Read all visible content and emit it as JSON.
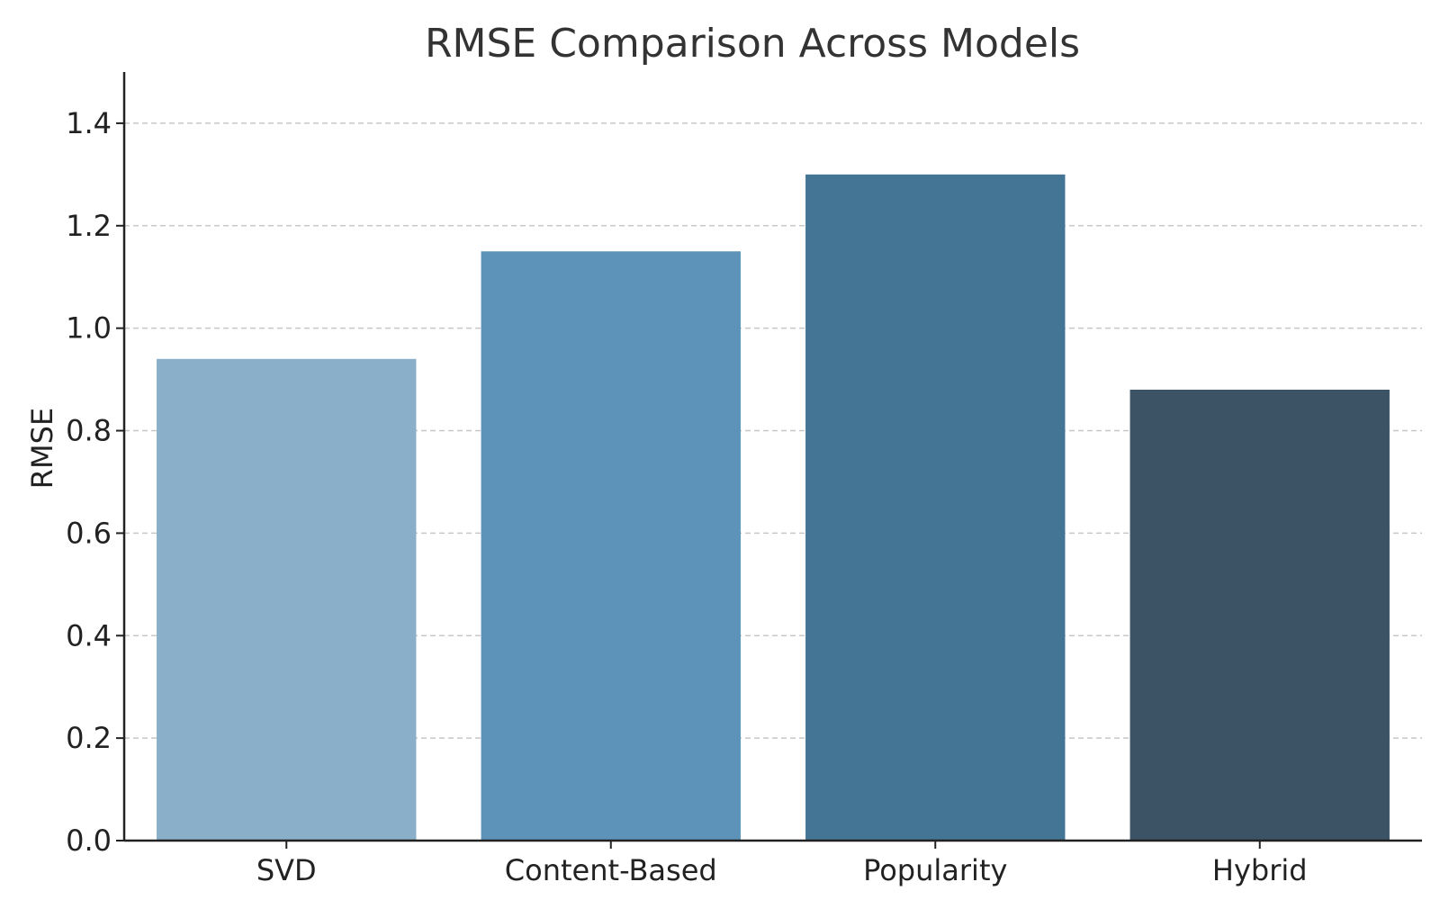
{
  "chart_data": {
    "type": "bar",
    "title": "RMSE Comparison Across Models",
    "xlabel": "",
    "ylabel": "RMSE",
    "categories": [
      "SVD",
      "Content-Based",
      "Popularity",
      "Hybrid"
    ],
    "values": [
      0.94,
      1.15,
      1.3,
      0.88
    ],
    "colors": [
      "#89afc9",
      "#5d93b8",
      "#447595",
      "#3c5366"
    ],
    "ylim": [
      0,
      1.5
    ],
    "yticks": [
      0.0,
      0.2,
      0.4,
      0.6,
      0.8,
      1.0,
      1.2,
      1.4
    ],
    "ytick_labels": [
      "0.0",
      "0.2",
      "0.4",
      "0.6",
      "0.8",
      "1.0",
      "1.2",
      "1.4"
    ],
    "grid": "horizontal-dashed",
    "legend": "none"
  }
}
